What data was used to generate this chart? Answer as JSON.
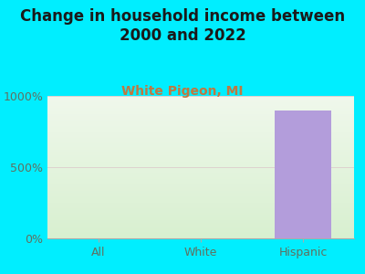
{
  "title": "Change in household income between\n2000 and 2022",
  "subtitle": "White Pigeon, MI",
  "categories": [
    "All",
    "White",
    "Hispanic"
  ],
  "values": [
    2,
    1,
    900
  ],
  "bar_colors": [
    "#c8e6c0",
    "#c8e6c0",
    "#b39ddb"
  ],
  "background_color": "#00eeff",
  "plot_bg_top": "#f0f8ec",
  "plot_bg_bottom": "#d8f0d0",
  "title_color": "#1a1a1a",
  "subtitle_color": "#c07840",
  "tick_label_color": "#607060",
  "ylim": [
    0,
    1000
  ],
  "yticks": [
    0,
    500,
    1000
  ],
  "ytick_labels": [
    "0%",
    "500%",
    "1000%"
  ],
  "title_fontsize": 12,
  "subtitle_fontsize": 10,
  "tick_fontsize": 9,
  "bar_width": 0.55
}
